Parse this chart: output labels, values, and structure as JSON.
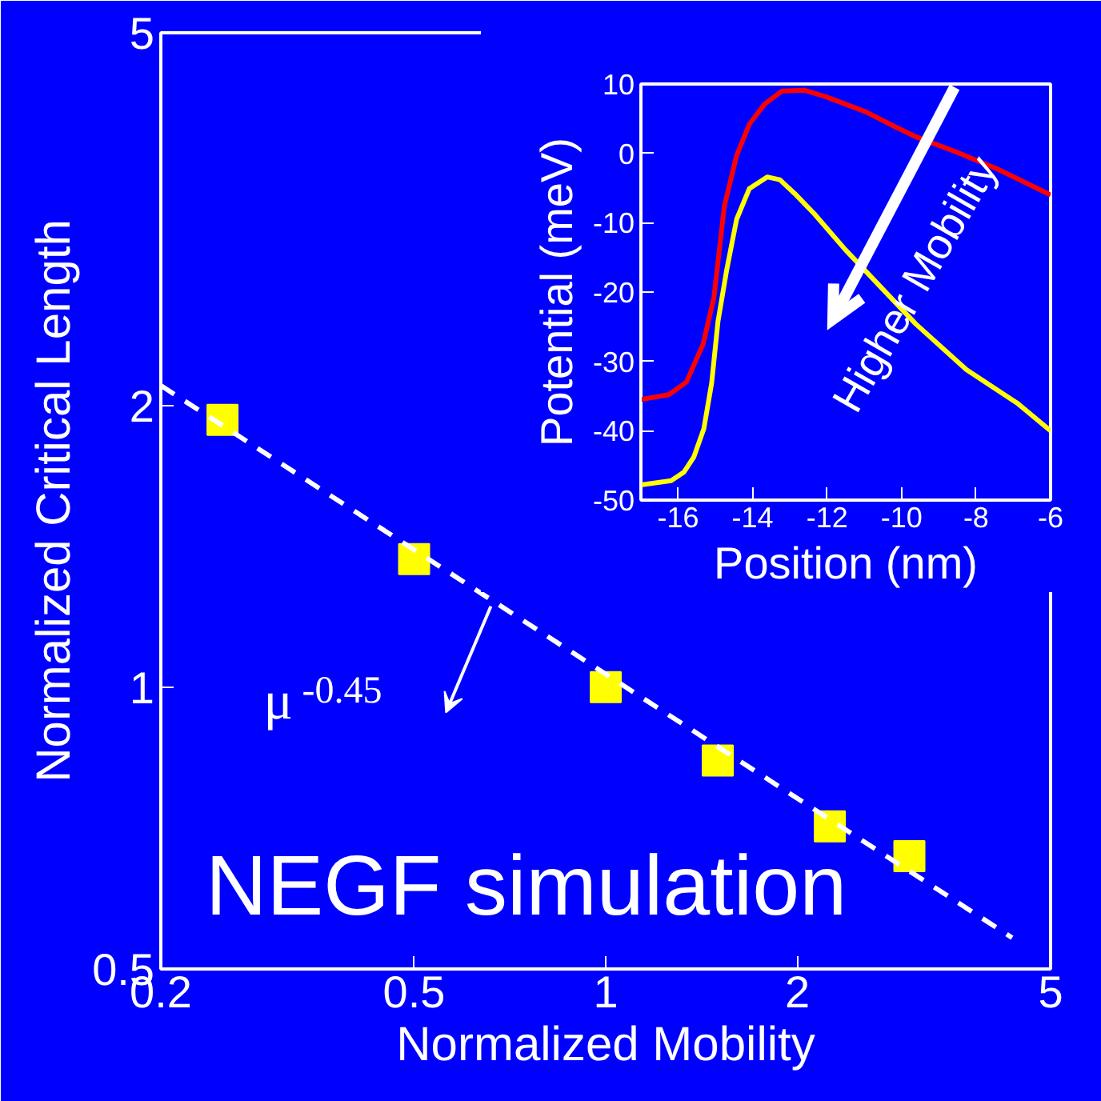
{
  "chart_data": [
    {
      "type": "scatter",
      "xlabel": "Normalized Mobility",
      "ylabel": "Normalized Critical Length",
      "log": "xy",
      "xlim": [
        0.2,
        5
      ],
      "ylim": [
        0.5,
        5
      ],
      "xticks": [
        0.2,
        0.5,
        1,
        2,
        5
      ],
      "yticks": [
        0.5,
        1,
        2,
        5
      ],
      "grid": false,
      "marker": "square",
      "series": [
        {
          "type": "scatter",
          "color": "#ffff00",
          "x": [
            0.25,
            0.5,
            1,
            1.5,
            2.25,
            3
          ],
          "values": [
            1.93,
            1.37,
            1.0,
            0.835,
            0.71,
            0.66
          ]
        },
        {
          "type": "line",
          "color": "#ffffff",
          "line_style": "dashed",
          "marker": "none",
          "x": [
            0.2,
            4.35
          ],
          "values": [
            2.1,
            0.54
          ]
        }
      ],
      "annotations": [
        {
          "text": "μ$^{-0.45}$",
          "x": 0.66,
          "y": 1.22
        },
        "NEGF simulation"
      ]
    },
    {
      "type": "line",
      "xlabel": "Position (nm)",
      "ylabel": "Potential (meV)",
      "xlim": [
        -17,
        -6
      ],
      "ylim": [
        -50,
        10
      ],
      "xticks": [
        -16,
        -14,
        -12,
        -10,
        -8,
        -6
      ],
      "yticks": [
        -50,
        -40,
        -30,
        -20,
        -10,
        0,
        10
      ],
      "grid": false,
      "series": [
        {
          "color": "#ff0000",
          "x": [
            -17,
            -16.25,
            -15.78,
            -15.33,
            -15.04,
            -14.76,
            -14.43,
            -14.09,
            -13.68,
            -13.21,
            -12.6,
            -12.05,
            -10.97,
            -10.16,
            -9.62,
            -8.53,
            -7.45,
            -6
          ],
          "values": [
            -35.5,
            -34.8,
            -33,
            -27.5,
            -20.8,
            -7.6,
            -0.3,
            4.2,
            7.1,
            9,
            9.1,
            8.2,
            6,
            3.8,
            2.4,
            0.2,
            -2.2,
            -6
          ]
        },
        {
          "color": "#ffff00",
          "x": [
            -17,
            -16.19,
            -15.85,
            -15.58,
            -15.31,
            -15.1,
            -14.93,
            -14.7,
            -14.43,
            -14.09,
            -13.61,
            -13.27,
            -12.87,
            -12.33,
            -11.51,
            -9.62,
            -8.26,
            -6.9,
            -6
          ],
          "values": [
            -47.8,
            -47.2,
            -46,
            -43.8,
            -39.7,
            -33.1,
            -24.2,
            -16.9,
            -9.5,
            -5.1,
            -3.4,
            -3.8,
            -5.8,
            -8.8,
            -13.9,
            -24.6,
            -31.2,
            -36,
            -40
          ]
        }
      ],
      "annotations": [
        "Higher Mobility"
      ]
    }
  ]
}
